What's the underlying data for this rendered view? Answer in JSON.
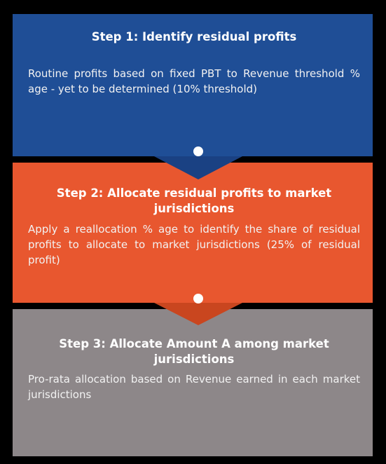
{
  "steps": [
    {
      "title": "Step 1: Identify residual profits",
      "body": "Routine profits based on fixed PBT to Revenue threshold % age - yet to be determined (10% threshold)"
    },
    {
      "title": "Step 2: Allocate residual profits to market jurisdictions",
      "body": "Apply a reallocation % age to identify the share of residual profits to allocate to market jurisdictions (25% of residual profit)"
    },
    {
      "title": "Step 3: Allocate Amount A among market jurisdictions",
      "body": "Pro-rata allocation based on Revenue earned in each market jurisdictions"
    }
  ]
}
